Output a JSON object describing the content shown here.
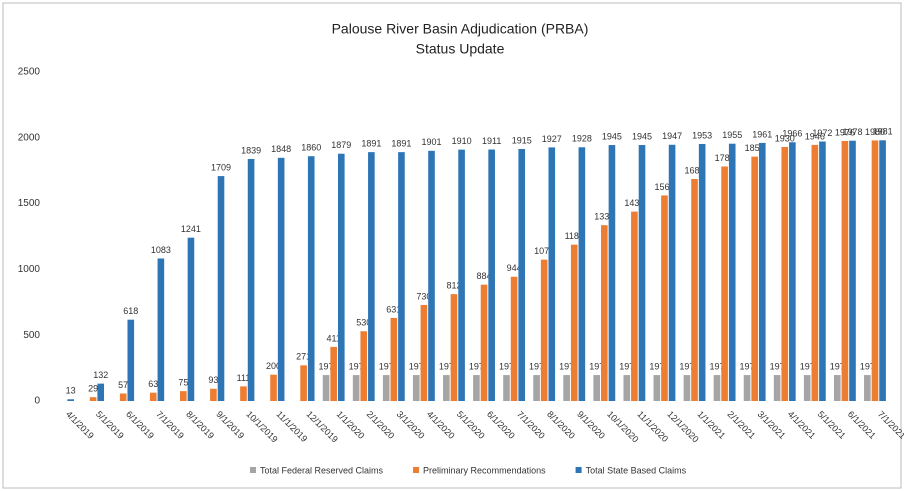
{
  "chart_data": {
    "type": "bar",
    "title": "Palouse River Basin Adjudication (PRBA)",
    "subtitle": "Status Update",
    "categories": [
      "4/1/2019",
      "5/1/2019",
      "6/1/2019",
      "7/1/2019",
      "8/1/2019",
      "9/1/2019",
      "10/1/2019",
      "11/1/2019",
      "12/1/2019",
      "1/1/2020",
      "2/1/2020",
      "3/1/2020",
      "4/1/2020",
      "5/1/2020",
      "6/1/2020",
      "7/1/2020",
      "8/1/2020",
      "9/1/2020",
      "10/1/2020",
      "11/1/2020",
      "12/1/2020",
      "1/1/2021",
      "2/1/2021",
      "3/1/2021",
      "4/1/2021",
      "5/1/2021",
      "6/1/2021",
      "7/1/2021"
    ],
    "series": [
      {
        "name": "Total Federal Reserved Claims",
        "color": "#a5a5a5",
        "values": [
          null,
          null,
          null,
          null,
          null,
          null,
          null,
          null,
          null,
          197,
          197,
          197,
          197,
          197,
          197,
          197,
          197,
          197,
          197,
          197,
          197,
          197,
          197,
          197,
          197,
          197,
          197,
          197
        ]
      },
      {
        "name": "Preliminary Recommendations",
        "color": "#ed7d31",
        "values": [
          null,
          29,
          57,
          63,
          75,
          93,
          111,
          200,
          271,
          411,
          530,
          631,
          730,
          812,
          884,
          944,
          1074,
          1188,
          1336,
          1439,
          1562,
          1687,
          1782,
          1857,
          1930,
          1946,
          1976,
          1980
        ]
      },
      {
        "name": "Total State Based Claims",
        "color": "#2e75b6",
        "values": [
          13,
          132,
          618,
          1083,
          1241,
          1709,
          1839,
          1848,
          1860,
          1879,
          1891,
          1891,
          1901,
          1910,
          1911,
          1915,
          1927,
          1928,
          1945,
          1945,
          1947,
          1953,
          1955,
          1961,
          1966,
          1972,
          1978,
          1981
        ]
      }
    ],
    "ylim": [
      0,
      2500
    ],
    "yticks": [
      0,
      500,
      1000,
      1500,
      2000,
      2500
    ],
    "grid": false,
    "legend": "bottom"
  }
}
